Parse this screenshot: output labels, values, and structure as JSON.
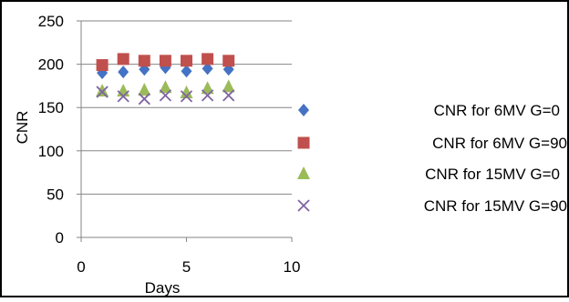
{
  "chart_data": {
    "type": "scatter",
    "title": "",
    "xlabel": "Days",
    "ylabel": "CNR",
    "xlim": [
      0,
      10
    ],
    "ylim": [
      0,
      250
    ],
    "x_ticks": [
      "0",
      "5",
      "10"
    ],
    "y_ticks": [
      "0",
      "50",
      "100",
      "150",
      "200",
      "250"
    ],
    "grid": "horizontal",
    "legend_position": "right",
    "series": [
      {
        "name": "CNR for 6MV G=0",
        "marker": "diamond",
        "color": "#4472C4",
        "x": [
          1,
          2,
          3,
          4,
          5,
          6,
          7
        ],
        "y": [
          190,
          191,
          194,
          196,
          192,
          195,
          194
        ]
      },
      {
        "name": "CNR for 6MV G=90",
        "marker": "square",
        "color": "#C0504D",
        "x": [
          1,
          2,
          3,
          4,
          5,
          6,
          7
        ],
        "y": [
          199,
          206,
          204,
          204,
          204,
          206,
          204
        ]
      },
      {
        "name": "CNR for 15MV G=0",
        "marker": "triangle",
        "color": "#9BBB59",
        "x": [
          1,
          2,
          3,
          4,
          5,
          6,
          7
        ],
        "y": [
          169,
          169,
          170,
          173,
          167,
          172,
          174
        ]
      },
      {
        "name": "CNR for 15MV G=90",
        "marker": "x",
        "color": "#8064A2",
        "x": [
          1,
          2,
          3,
          4,
          5,
          6,
          7
        ],
        "y": [
          168,
          163,
          160,
          164,
          163,
          164,
          164
        ]
      }
    ]
  }
}
